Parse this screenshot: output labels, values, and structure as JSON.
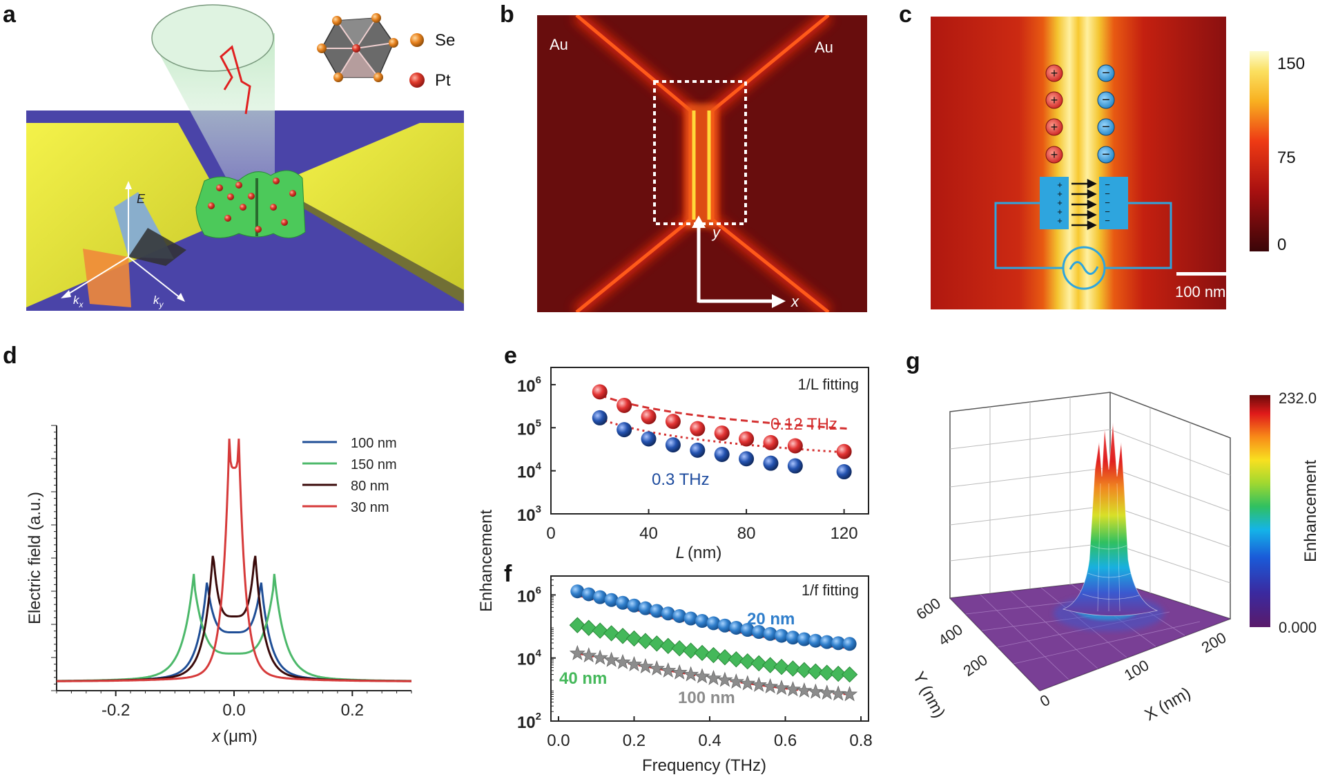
{
  "panel_labels": {
    "a": "a",
    "b": "b",
    "c": "c",
    "d": "d",
    "e": "e",
    "f": "f",
    "g": "g"
  },
  "panel_a": {
    "legend": [
      {
        "label": "Se",
        "color": "#e8821e"
      },
      {
        "label": "Pt",
        "color": "#d42323"
      }
    ],
    "field_label": "E",
    "kx_label": "k",
    "kx_sub": "x",
    "ky_label": "k",
    "ky_sub": "y",
    "colors": {
      "substrate": "#4a44a8",
      "gold": "#e2e23a",
      "flake": "#4cc95a",
      "beam": "#c8ebcb"
    }
  },
  "panel_b": {
    "left_label": "Au",
    "right_label": "Au",
    "x_axis": "x",
    "y_axis": "y",
    "colors": {
      "background": "#5e0a0c",
      "glow": "#ff3a14",
      "core": "#ffd33a"
    }
  },
  "panel_c": {
    "charges_positive": [
      "+",
      "+",
      "+",
      "+"
    ],
    "charges_negative": [
      "−",
      "−",
      "−",
      "−"
    ],
    "plate_signs_left": [
      "+",
      "+",
      "+",
      "+",
      "+"
    ],
    "plate_signs_right": [
      "−",
      "−",
      "−",
      "−",
      "−"
    ],
    "scale_bar_label": "100 nm",
    "colorbar_ticks": [
      "150",
      "75",
      "0"
    ],
    "colors": {
      "plate": "#2ea5de",
      "circuit": "#2ea5de"
    }
  },
  "chart_data": [
    {
      "panel": "d",
      "type": "line",
      "title": "",
      "xlabel": "x (μm)",
      "xlabel_var": "x",
      "xlabel_unit": "(μm)",
      "ylabel": "Electric field (a.u.)",
      "xlim": [
        -0.3,
        0.3
      ],
      "ylim": [
        0,
        1
      ],
      "x_ticks": [
        -0.2,
        0.0,
        0.2
      ],
      "x_tick_labels": [
        "-0.2",
        "0.0",
        "0.2"
      ],
      "legend_position": "top-right",
      "series": [
        {
          "name": "100 nm",
          "color": "#1f4e96",
          "peaks_at": [
            -0.045,
            0.045
          ],
          "peak_height": 0.4,
          "center_min": 0.22
        },
        {
          "name": "150 nm",
          "color": "#4cb86a",
          "peaks_at": [
            -0.068,
            0.068
          ],
          "peak_height": 0.41,
          "center_min": 0.14
        },
        {
          "name": "80 nm",
          "color": "#3a0a0a",
          "peaks_at": [
            -0.035,
            0.035
          ],
          "peak_height": 0.51,
          "center_min": 0.28
        },
        {
          "name": "30 nm",
          "color": "#d63a3a",
          "peaks_at": [
            -0.008,
            0.008
          ],
          "peak_height": 0.92,
          "center_min": 0.84
        }
      ]
    },
    {
      "panel": "e",
      "type": "scatter",
      "xlabel": "L (nm)",
      "xlabel_var": "L",
      "xlabel_unit": "(nm)",
      "ylabel": "Enhancement",
      "xlim": [
        0,
        130
      ],
      "ylim_log10": [
        3,
        6.4
      ],
      "x_ticks": [
        0,
        40,
        80,
        120
      ],
      "x_tick_labels": [
        "0",
        "40",
        "80",
        "120"
      ],
      "y_tick_labels": [
        "10",
        "10",
        "10",
        "10"
      ],
      "y_tick_exponents": [
        "6",
        "5",
        "4",
        "3"
      ],
      "annotation": "1/L fitting",
      "series": [
        {
          "name": "0.12 THz",
          "color": "#d42d2d",
          "x": [
            20,
            30,
            40,
            50,
            60,
            70,
            80,
            90,
            100,
            120
          ],
          "y": [
            680000,
            330000,
            180000,
            140000,
            95000,
            75000,
            55000,
            45000,
            38000,
            28000
          ]
        },
        {
          "name": "0.3 THz",
          "color": "#1d4b9e",
          "x": [
            20,
            30,
            40,
            50,
            60,
            70,
            80,
            90,
            100,
            120
          ],
          "y": [
            170000,
            90000,
            55000,
            40000,
            30000,
            24000,
            19000,
            15000,
            13000,
            9500
          ]
        }
      ]
    },
    {
      "panel": "f",
      "type": "scatter",
      "xlabel": "Frequency (THz)",
      "ylabel": "Enhancement",
      "xlim": [
        -0.02,
        0.82
      ],
      "ylim_log10": [
        2,
        6.6
      ],
      "x_ticks": [
        0.0,
        0.2,
        0.4,
        0.6,
        0.8
      ],
      "x_tick_labels": [
        "0.0",
        "0.2",
        "0.4",
        "0.6",
        "0.8"
      ],
      "y_tick_labels": [
        "10",
        "10",
        "10"
      ],
      "y_tick_exponents": [
        "6",
        "4",
        "2"
      ],
      "annotation": "1/f fitting",
      "series": [
        {
          "name": "20 nm",
          "color": "#2f7ecb",
          "marker": "circle",
          "y_start": 1300000,
          "y_end": 28000
        },
        {
          "name": "40 nm",
          "color": "#44b85a",
          "marker": "diamond",
          "y_start": 110000,
          "y_end": 3000
        },
        {
          "name": "100 nm",
          "color": "#8c8c8c",
          "marker": "star",
          "y_start": 14000,
          "y_end": 700
        }
      ],
      "x": [
        0.05,
        0.08,
        0.11,
        0.14,
        0.17,
        0.2,
        0.23,
        0.26,
        0.29,
        0.32,
        0.35,
        0.38,
        0.41,
        0.44,
        0.47,
        0.5,
        0.53,
        0.56,
        0.59,
        0.62,
        0.65,
        0.68,
        0.71,
        0.74,
        0.77
      ]
    },
    {
      "panel": "g",
      "type": "surface",
      "xlabel": "X (nm)",
      "ylabel": "Y (nm)",
      "zlabel": "Enhancement",
      "x_tick_labels": [
        "0",
        "100",
        "200"
      ],
      "y_tick_labels": [
        "200",
        "400",
        "600"
      ],
      "colorbar_max": "232.0",
      "colorbar_min": "0.000"
    }
  ]
}
